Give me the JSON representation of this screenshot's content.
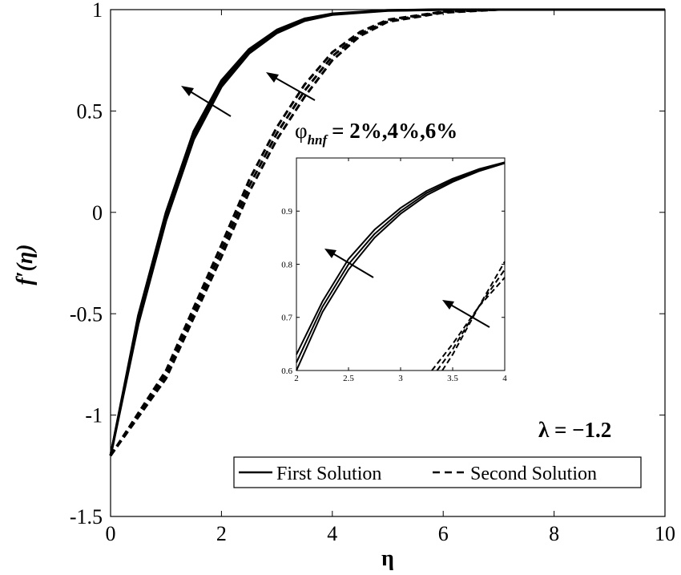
{
  "chart_data": [
    {
      "type": "line",
      "xlabel": "η",
      "ylabel": "f′(η)",
      "xlim": [
        0,
        10
      ],
      "ylim": [
        -1.5,
        1
      ],
      "x_ticks": [
        "0",
        "2",
        "4",
        "6",
        "8",
        "10"
      ],
      "y_ticks": [
        "-1.5",
        "-1",
        "-0.5",
        "0",
        "0.5",
        "1"
      ],
      "grid": false,
      "legend_position": "bottom-right",
      "legend": [
        {
          "label": "First Solution",
          "style": "solid"
        },
        {
          "label": "Second Solution",
          "style": "dashed"
        }
      ],
      "annotations": {
        "phi_symbol": "φ",
        "phi_subscript": "hnf",
        "phi_values": "= 2%,4%,6%",
        "lambda": "λ = −1.2"
      },
      "series": [
        {
          "name": "First Solution",
          "style": "solid",
          "phi": "2%",
          "x": [
            0,
            0.5,
            1,
            1.5,
            2,
            2.5,
            3,
            3.5,
            4,
            5,
            6,
            8,
            10
          ],
          "y": [
            -1.2,
            -0.55,
            -0.04,
            0.36,
            0.62,
            0.785,
            0.885,
            0.945,
            0.975,
            0.995,
            1,
            1,
            1
          ]
        },
        {
          "name": "First Solution",
          "style": "solid",
          "phi": "4%",
          "x": [
            0,
            0.5,
            1,
            1.5,
            2,
            2.5,
            3,
            3.5,
            4,
            5,
            6,
            8,
            10
          ],
          "y": [
            -1.2,
            -0.53,
            -0.02,
            0.38,
            0.635,
            0.795,
            0.892,
            0.95,
            0.978,
            0.996,
            1,
            1,
            1
          ]
        },
        {
          "name": "First Solution",
          "style": "solid",
          "phi": "6%",
          "x": [
            0,
            0.5,
            1,
            1.5,
            2,
            2.5,
            3,
            3.5,
            4,
            5,
            6,
            8,
            10
          ],
          "y": [
            -1.2,
            -0.51,
            0.0,
            0.4,
            0.65,
            0.805,
            0.9,
            0.955,
            0.98,
            0.997,
            1,
            1,
            1
          ]
        },
        {
          "name": "Second Solution",
          "style": "dashed",
          "phi": "2%",
          "x": [
            0,
            1,
            2,
            2.5,
            3,
            3.5,
            4,
            4.5,
            5,
            6,
            7,
            8,
            10
          ],
          "y": [
            -1.2,
            -0.82,
            -0.22,
            0.1,
            0.36,
            0.57,
            0.75,
            0.87,
            0.94,
            0.985,
            1,
            1,
            1
          ]
        },
        {
          "name": "Second Solution",
          "style": "dashed",
          "phi": "4%",
          "x": [
            0,
            1,
            2,
            2.5,
            3,
            3.5,
            4,
            4.5,
            5,
            6,
            7,
            8,
            10
          ],
          "y": [
            -1.2,
            -0.8,
            -0.19,
            0.13,
            0.39,
            0.6,
            0.77,
            0.88,
            0.945,
            0.988,
            1,
            1,
            1
          ]
        },
        {
          "name": "Second Solution",
          "style": "dashed",
          "phi": "6%",
          "x": [
            0,
            1,
            2,
            2.5,
            3,
            3.5,
            4,
            4.5,
            5,
            6,
            7,
            8,
            10
          ],
          "y": [
            -1.2,
            -0.78,
            -0.16,
            0.16,
            0.42,
            0.63,
            0.79,
            0.89,
            0.95,
            0.99,
            1,
            1,
            1
          ]
        }
      ]
    },
    {
      "type": "line",
      "xlim": [
        2,
        4
      ],
      "ylim": [
        0.6,
        1
      ],
      "x_ticks": [
        "2",
        "2.5",
        "3",
        "3.5",
        "4"
      ],
      "y_ticks": [
        "0.6",
        "0.7",
        "0.8",
        "0.9"
      ],
      "grid": false,
      "series": [
        {
          "name": "First Solution",
          "style": "solid",
          "x": [
            2,
            2.25,
            2.5,
            2.75,
            3,
            3.25,
            3.5,
            3.75,
            4
          ],
          "y": [
            0.6,
            0.71,
            0.79,
            0.85,
            0.895,
            0.93,
            0.955,
            0.975,
            0.99
          ]
        },
        {
          "name": "First Solution",
          "style": "solid",
          "x": [
            2,
            2.25,
            2.5,
            2.75,
            3,
            3.25,
            3.5,
            3.75,
            4
          ],
          "y": [
            0.615,
            0.72,
            0.8,
            0.857,
            0.9,
            0.934,
            0.958,
            0.977,
            0.991
          ]
        },
        {
          "name": "First Solution",
          "style": "solid",
          "x": [
            2,
            2.25,
            2.5,
            2.75,
            3,
            3.25,
            3.5,
            3.75,
            4
          ],
          "y": [
            0.63,
            0.73,
            0.81,
            0.865,
            0.906,
            0.938,
            0.961,
            0.979,
            0.992
          ]
        },
        {
          "name": "Second Solution",
          "style": "dashed",
          "x": [
            3.3,
            3.5,
            3.75,
            4
          ],
          "y": [
            0.6,
            0.65,
            0.72,
            0.775
          ]
        },
        {
          "name": "Second Solution",
          "style": "dashed",
          "x": [
            3.35,
            3.5,
            3.75,
            4
          ],
          "y": [
            0.6,
            0.64,
            0.72,
            0.79
          ]
        },
        {
          "name": "Second Solution",
          "style": "dashed",
          "x": [
            3.4,
            3.5,
            3.75,
            4
          ],
          "y": [
            0.6,
            0.63,
            0.72,
            0.805
          ]
        }
      ]
    }
  ]
}
